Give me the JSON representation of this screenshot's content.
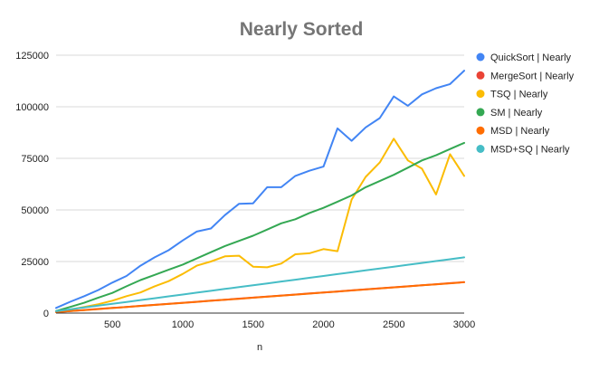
{
  "chart_data": {
    "type": "line",
    "title": "Nearly Sorted",
    "xlabel": "n",
    "ylabel": "",
    "xlim": [
      100,
      3000
    ],
    "ylim": [
      0,
      125000
    ],
    "x_ticks": [
      500,
      1000,
      1500,
      2000,
      2500,
      3000
    ],
    "y_ticks": [
      0,
      25000,
      50000,
      75000,
      100000,
      125000
    ],
    "grid": "horizontal",
    "legend_position": "right",
    "x": [
      100,
      200,
      300,
      400,
      500,
      600,
      700,
      800,
      900,
      1000,
      1100,
      1200,
      1300,
      1400,
      1500,
      1600,
      1700,
      1800,
      1900,
      2000,
      2100,
      2200,
      2300,
      2400,
      2500,
      2600,
      2700,
      2800,
      2900,
      3000
    ],
    "series": [
      {
        "name": "QuickSort | Nearly",
        "color": "#4285f4",
        "values": [
          2500,
          5500,
          8200,
          11200,
          14800,
          18000,
          23000,
          27000,
          30500,
          35200,
          39500,
          41000,
          47500,
          53000,
          53200,
          61000,
          61000,
          66500,
          69000,
          71000,
          89500,
          83500,
          90000,
          94500,
          105000,
          100500,
          106000,
          109000,
          111000,
          117500
        ]
      },
      {
        "name": "MergeSort | Nearly",
        "color": "#ea4335",
        "values": [
          500,
          1000,
          1500,
          2000,
          2500,
          3000,
          3500,
          4000,
          4500,
          5000,
          5500,
          6000,
          6500,
          7000,
          7500,
          8000,
          8500,
          9000,
          9500,
          10000,
          10500,
          11000,
          11500,
          12000,
          12500,
          13000,
          13500,
          14000,
          14500,
          15000
        ]
      },
      {
        "name": "TSQ | Nearly",
        "color": "#fbbc04",
        "values": [
          600,
          1700,
          3000,
          4300,
          6000,
          8200,
          10000,
          13000,
          15500,
          19000,
          23000,
          25000,
          27500,
          27800,
          22500,
          22200,
          24000,
          28500,
          29000,
          31000,
          30000,
          55000,
          66000,
          73000,
          84500,
          74000,
          70000,
          57500,
          77000,
          66500
        ]
      },
      {
        "name": "SM | Nearly",
        "color": "#34a853",
        "values": [
          1000,
          3000,
          5000,
          7500,
          9800,
          13000,
          16000,
          18500,
          21000,
          23500,
          26500,
          29500,
          32500,
          35000,
          37500,
          40500,
          43500,
          45500,
          48500,
          51000,
          54000,
          57000,
          61000,
          64000,
          67000,
          70500,
          74000,
          76500,
          79500,
          82500
        ]
      },
      {
        "name": "MSD | Nearly",
        "color": "#ff6d01",
        "values": [
          450,
          950,
          1450,
          1950,
          2450,
          2950,
          3450,
          3950,
          4450,
          4950,
          5450,
          5950,
          6450,
          6950,
          7450,
          7950,
          8450,
          8950,
          9450,
          9950,
          10450,
          10950,
          11450,
          11950,
          12450,
          12950,
          13450,
          13950,
          14450,
          14950
        ]
      },
      {
        "name": "MSD+SQ | Nearly",
        "color": "#46bdc6",
        "values": [
          900,
          1800,
          2700,
          3600,
          4500,
          5400,
          6300,
          7200,
          8100,
          9000,
          9900,
          10800,
          11700,
          12600,
          13500,
          14400,
          15300,
          16200,
          17100,
          18000,
          18900,
          19800,
          20700,
          21600,
          22500,
          23400,
          24300,
          25200,
          26100,
          27000
        ]
      }
    ]
  }
}
